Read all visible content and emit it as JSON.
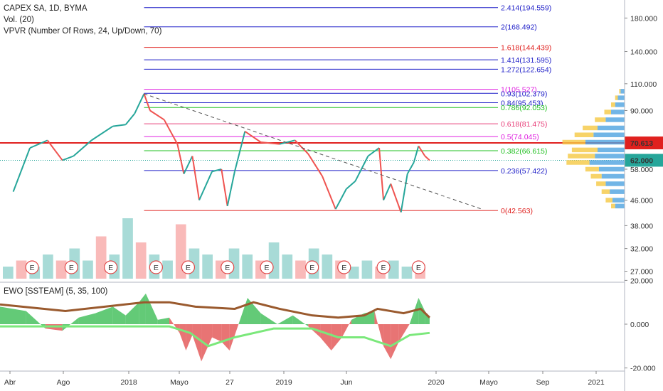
{
  "header": {
    "symbol": "CAPEX SA, 1D, BYMA",
    "volume": "Vol. (20)",
    "vpvr": "VPVR (Number Of Rows, 24, Up/Down, 70)",
    "ewo": "EWO [SSTEAM] (5, 35, 100)"
  },
  "colors": {
    "up_candle": "#26a69a",
    "down_candle": "#ef5350",
    "fib_blue": "#1e1ec8",
    "fib_red": "#e0201e",
    "fib_green": "#22c022",
    "fib_magenta": "#e020e0",
    "fib_pink": "#e8407a",
    "current_price_badge": "#26a69a",
    "resistance_badge": "#e0201e",
    "vpvr_up": "#f5c842",
    "vpvr_down": "#4da3e0"
  },
  "chart_data": [
    {
      "type": "line",
      "title": "CAPEX SA, 1D, BYMA",
      "scale": "log",
      "y_ticks": [
        "180.000",
        "140.000",
        "110.000",
        "90.000",
        "58.000",
        "46.000",
        "38.000",
        "32.000",
        "27.000"
      ],
      "y_tick_values": [
        180,
        140,
        110,
        90,
        58,
        46,
        38,
        32,
        27
      ],
      "x_ticks": [
        "Abr",
        "Ago",
        "2018",
        "Mayo",
        "27",
        "2019",
        "Jun",
        "2020",
        "Mayo",
        "Sep",
        "2021"
      ],
      "price_series": [
        [
          "2017-04-01",
          49
        ],
        [
          "2017-05-10",
          68
        ],
        [
          "2017-06-20",
          72
        ],
        [
          "2017-07-25",
          62
        ],
        [
          "2017-08-20",
          64
        ],
        [
          "2017-10-01",
          72
        ],
        [
          "2017-11-20",
          80
        ],
        [
          "2017-12-20",
          81
        ],
        [
          "2018-01-10",
          88
        ],
        [
          "2018-02-01",
          102
        ],
        [
          "2018-02-15",
          90
        ],
        [
          "2018-03-20",
          84
        ],
        [
          "2018-04-20",
          70
        ],
        [
          "2018-05-05",
          56
        ],
        [
          "2018-05-25",
          64
        ],
        [
          "2018-06-10",
          46
        ],
        [
          "2018-07-10",
          57
        ],
        [
          "2018-08-01",
          58
        ],
        [
          "2018-08-15",
          44
        ],
        [
          "2018-09-01",
          57
        ],
        [
          "2018-09-25",
          77
        ],
        [
          "2018-11-01",
          71
        ],
        [
          "2018-12-15",
          70
        ],
        [
          "2019-01-20",
          72
        ],
        [
          "2019-02-20",
          65
        ],
        [
          "2019-03-25",
          55
        ],
        [
          "2019-04-25",
          43
        ],
        [
          "2019-05-20",
          50
        ],
        [
          "2019-06-10",
          53
        ],
        [
          "2019-07-10",
          64
        ],
        [
          "2019-08-05",
          68
        ],
        [
          "2019-08-15",
          46
        ],
        [
          "2019-09-01",
          52
        ],
        [
          "2019-09-25",
          42
        ],
        [
          "2019-10-10",
          56
        ],
        [
          "2019-10-25",
          61
        ],
        [
          "2019-11-05",
          69
        ],
        [
          "2019-11-20",
          64
        ],
        [
          "2019-12-01",
          62
        ]
      ],
      "fib_levels": [
        {
          "label": "2.414(194.559)",
          "value": 194.559,
          "color": "#1e1ec8"
        },
        {
          "label": "2(168.492)",
          "value": 168.492,
          "color": "#1e1ec8"
        },
        {
          "label": "1.618(144.439)",
          "value": 144.439,
          "color": "#e0201e"
        },
        {
          "label": "1.414(131.595)",
          "value": 131.595,
          "color": "#1e1ec8"
        },
        {
          "label": "1.272(122.654)",
          "value": 122.654,
          "color": "#1e1ec8"
        },
        {
          "label": "1(105.527)",
          "value": 105.527,
          "color": "#e020e0"
        },
        {
          "label": "0.93(102.379)",
          "value": 102.379,
          "color": "#1e1ec8"
        },
        {
          "label": "0.84(95.453)",
          "value": 95.453,
          "color": "#1e1ec8"
        },
        {
          "label": "0.786(92.053)",
          "value": 92.053,
          "color": "#22c022"
        },
        {
          "label": "0.618(81.475)",
          "value": 81.475,
          "color": "#e8407a"
        },
        {
          "label": "0.5(74.045)",
          "value": 74.045,
          "color": "#e020e0"
        },
        {
          "label": "0.382(66.615)",
          "value": 66.615,
          "color": "#22c022"
        },
        {
          "label": "0.236(57.422)",
          "value": 57.422,
          "color": "#1e1ec8"
        },
        {
          "label": "0(42.563)",
          "value": 42.563,
          "color": "#e0201e"
        }
      ],
      "resistance_level": {
        "label": "70.613",
        "value": 70.613
      },
      "current_price": {
        "label": "62.000",
        "value": 62.0
      },
      "trendline": {
        "from": [
          "2018-02-01",
          102
        ],
        "to": [
          "2020-04-01",
          43
        ]
      },
      "earnings_label": "E",
      "earnings_dates": [
        "2017-05-15",
        "2017-08-15",
        "2017-11-15",
        "2018-03-01",
        "2018-05-15",
        "2018-08-15",
        "2018-11-15",
        "2019-03-01",
        "2019-05-15",
        "2019-08-15",
        "2019-11-05"
      ],
      "volume": [
        2,
        3,
        2,
        4,
        3,
        5,
        3,
        7,
        4,
        10,
        6,
        4,
        3,
        9,
        5,
        4,
        3,
        5,
        4,
        3,
        6,
        4,
        3,
        5,
        4,
        3,
        2,
        3,
        2,
        3,
        2,
        2
      ],
      "vpvr_rows": [
        {
          "price": 44,
          "up": 6,
          "down": 14
        },
        {
          "price": 46,
          "up": 10,
          "down": 18
        },
        {
          "price": 49,
          "up": 12,
          "down": 22
        },
        {
          "price": 52,
          "up": 14,
          "down": 28
        },
        {
          "price": 55,
          "up": 16,
          "down": 34
        },
        {
          "price": 58,
          "up": 20,
          "down": 38
        },
        {
          "price": 61,
          "up": 34,
          "down": 52
        },
        {
          "price": 64,
          "up": 40,
          "down": 44
        },
        {
          "price": 67,
          "up": 38,
          "down": 40
        },
        {
          "price": 71,
          "up": 34,
          "down": 58
        },
        {
          "price": 75,
          "up": 28,
          "down": 46
        },
        {
          "price": 79,
          "up": 22,
          "down": 40
        },
        {
          "price": 84,
          "up": 16,
          "down": 28
        },
        {
          "price": 89,
          "up": 10,
          "down": 20
        },
        {
          "price": 94,
          "up": 6,
          "down": 14
        },
        {
          "price": 99,
          "up": 4,
          "down": 10
        },
        {
          "price": 104,
          "up": 2,
          "down": 6
        }
      ]
    },
    {
      "type": "area",
      "title": "EWO [SSTEAM] (5, 35, 100)",
      "y_ticks": [
        "20.000",
        "0.000",
        "-20.000"
      ],
      "y_tick_values": [
        20,
        0,
        -20
      ],
      "ewo_series": [
        [
          "2017-03-01",
          8
        ],
        [
          "2017-05-01",
          6
        ],
        [
          "2017-06-15",
          -2
        ],
        [
          "2017-07-25",
          -3
        ],
        [
          "2017-09-01",
          3
        ],
        [
          "2017-10-10",
          5
        ],
        [
          "2017-11-20",
          8
        ],
        [
          "2017-12-20",
          4
        ],
        [
          "2018-01-20",
          10
        ],
        [
          "2018-02-05",
          14
        ],
        [
          "2018-03-05",
          2
        ],
        [
          "2018-04-01",
          3
        ],
        [
          "2018-04-25",
          -4
        ],
        [
          "2018-05-10",
          -12
        ],
        [
          "2018-05-25",
          -5
        ],
        [
          "2018-06-15",
          -17
        ],
        [
          "2018-07-10",
          -6
        ],
        [
          "2018-08-01",
          -8
        ],
        [
          "2018-08-20",
          -12
        ],
        [
          "2018-09-10",
          0
        ],
        [
          "2018-10-01",
          12
        ],
        [
          "2018-11-01",
          5
        ],
        [
          "2018-12-10",
          0
        ],
        [
          "2019-01-15",
          4
        ],
        [
          "2019-02-20",
          -1
        ],
        [
          "2019-03-20",
          -6
        ],
        [
          "2019-04-15",
          -12
        ],
        [
          "2019-05-10",
          -6
        ],
        [
          "2019-06-01",
          2
        ],
        [
          "2019-07-01",
          5
        ],
        [
          "2019-07-25",
          6
        ],
        [
          "2019-08-15",
          -10
        ],
        [
          "2019-09-01",
          -16
        ],
        [
          "2019-09-20",
          -8
        ],
        [
          "2019-10-15",
          0
        ],
        [
          "2019-11-05",
          12
        ],
        [
          "2019-11-20",
          6
        ],
        [
          "2019-12-01",
          3
        ]
      ],
      "signal_brown": [
        [
          "2017-03-01",
          9
        ],
        [
          "2017-08-01",
          6
        ],
        [
          "2017-11-01",
          8
        ],
        [
          "2018-02-01",
          10
        ],
        [
          "2018-04-01",
          10
        ],
        [
          "2018-06-01",
          8
        ],
        [
          "2018-09-01",
          7
        ],
        [
          "2018-10-15",
          10
        ],
        [
          "2018-12-15",
          7
        ],
        [
          "2019-03-01",
          4
        ],
        [
          "2019-05-01",
          3
        ],
        [
          "2019-07-01",
          4
        ],
        [
          "2019-08-01",
          7
        ],
        [
          "2019-10-01",
          5
        ],
        [
          "2019-11-10",
          7
        ],
        [
          "2019-12-01",
          3
        ]
      ],
      "signal_green": [
        [
          "2017-03-01",
          -1
        ],
        [
          "2017-08-01",
          -1
        ],
        [
          "2018-01-01",
          -1
        ],
        [
          "2018-04-01",
          -1
        ],
        [
          "2018-05-20",
          -4
        ],
        [
          "2018-07-01",
          -10
        ],
        [
          "2018-09-01",
          -6
        ],
        [
          "2018-12-01",
          -2
        ],
        [
          "2019-03-01",
          -2
        ],
        [
          "2019-05-01",
          -6
        ],
        [
          "2019-07-01",
          -6
        ],
        [
          "2019-09-01",
          -10
        ],
        [
          "2019-10-15",
          -5
        ],
        [
          "2019-12-01",
          -4
        ]
      ]
    }
  ]
}
